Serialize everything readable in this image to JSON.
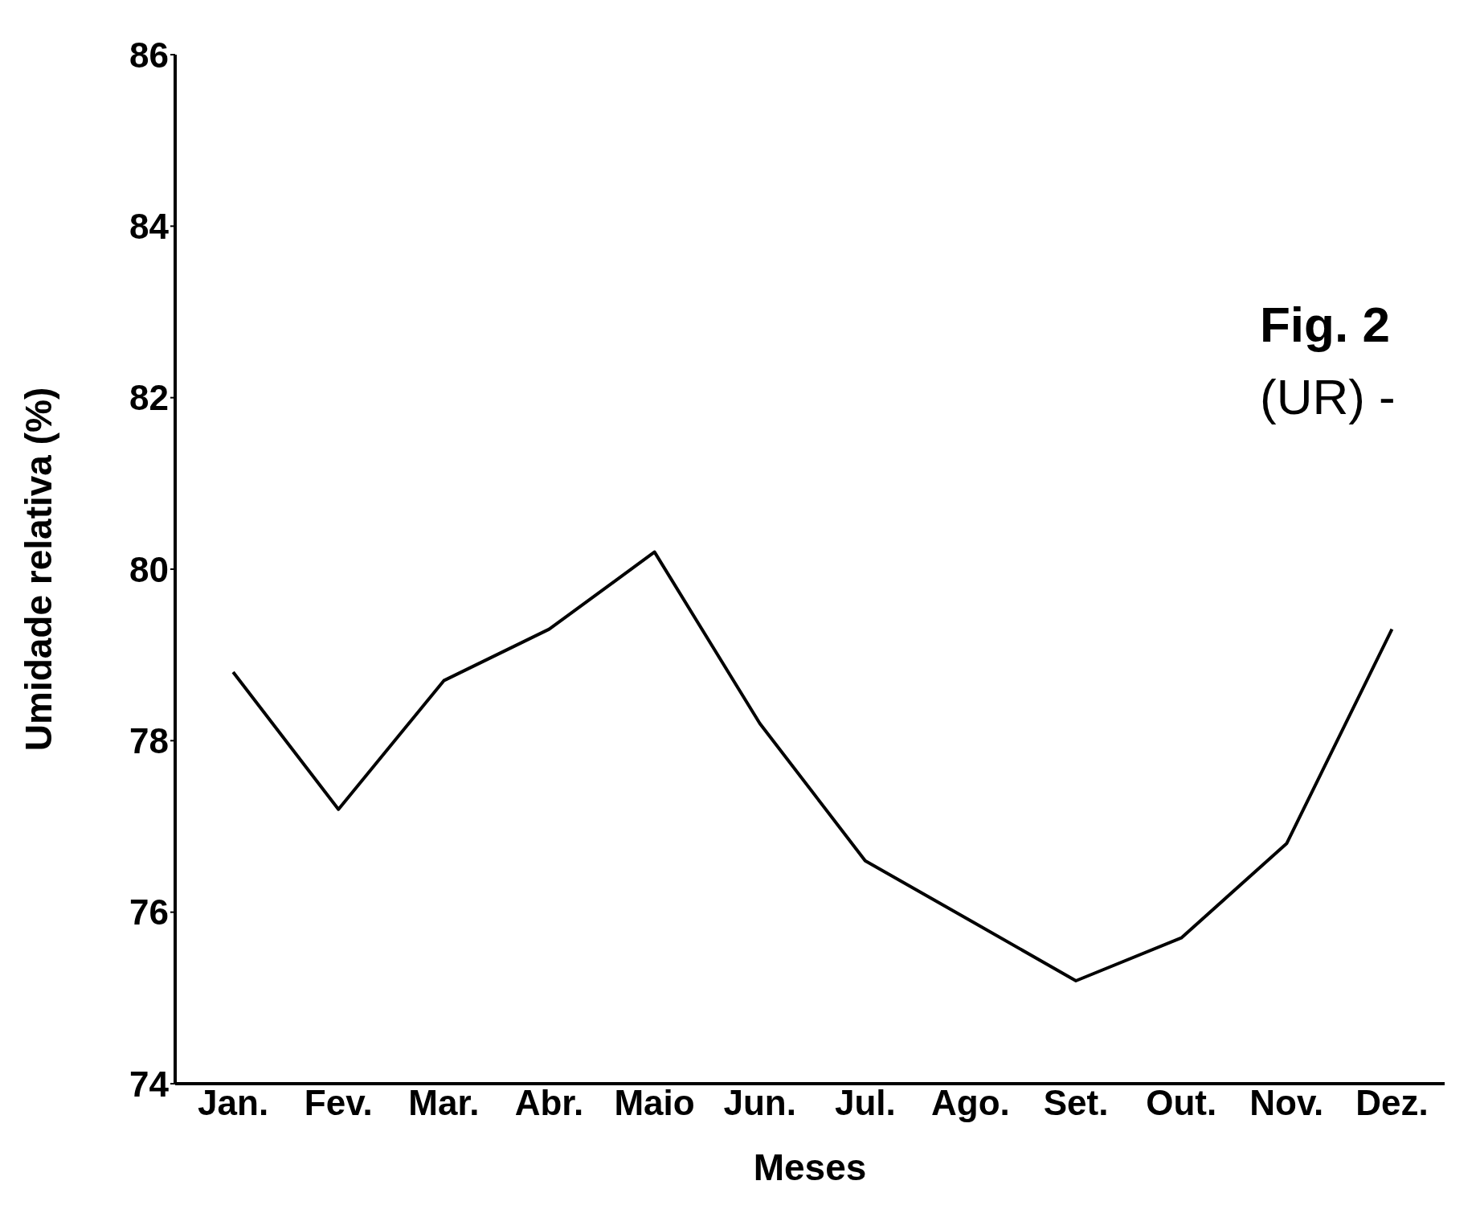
{
  "chart_data": {
    "type": "line",
    "xlabel": "Meses",
    "ylabel": "Umidade relativa (%)",
    "annotations": [
      "Fig. 2",
      "(UR) -"
    ],
    "categories": [
      "Jan.",
      "Fev.",
      "Mar.",
      "Abr.",
      "Maio",
      "Jun.",
      "Jul.",
      "Ago.",
      "Set.",
      "Out.",
      "Nov.",
      "Dez."
    ],
    "series": [
      {
        "color": "#000000",
        "values": [
          78.8,
          77.2,
          78.7,
          79.3,
          80.2,
          78.2,
          76.6,
          75.9,
          75.2,
          75.7,
          76.8,
          79.3
        ]
      }
    ],
    "ylim": [
      74,
      86
    ],
    "yticks": [
      74,
      76,
      78,
      80,
      82,
      84,
      86
    ],
    "grid": false,
    "legend": false,
    "marker": "none",
    "line_style": "solid"
  }
}
